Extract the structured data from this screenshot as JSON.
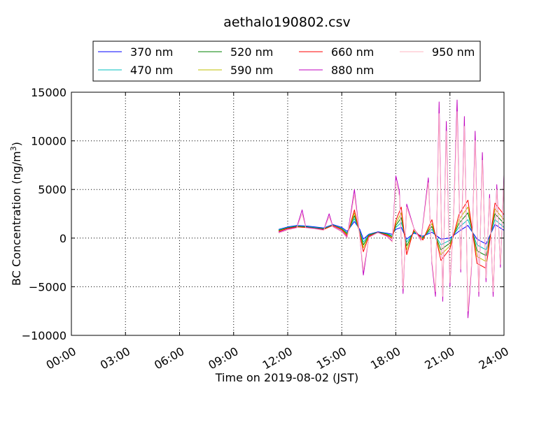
{
  "chart_data": {
    "type": "line",
    "title": "aethalo190802.csv",
    "xlabel": "Time on 2019-08-02 (JST)",
    "ylabel_main": "BC Concentration (ng/m",
    "ylabel_sup": "3",
    "ylabel_close": ")",
    "xlim": [
      0,
      24
    ],
    "ylim": [
      -10000,
      15000
    ],
    "x_ticks": [
      0,
      3,
      6,
      9,
      12,
      15,
      18,
      21,
      24
    ],
    "x_tick_labels": [
      "00:00",
      "03:00",
      "06:00",
      "09:00",
      "12:00",
      "15:00",
      "18:00",
      "21:00",
      "24:00"
    ],
    "y_ticks": [
      -10000,
      -5000,
      0,
      5000,
      10000,
      15000
    ],
    "y_tick_labels": [
      "−10000",
      "−5000",
      "0",
      "5000",
      "10000",
      "15000"
    ],
    "grid": true,
    "legend_position": "top",
    "series": [
      {
        "name": "370 nm",
        "color": "#0000ff",
        "points": [
          [
            11.5,
            900
          ],
          [
            12.0,
            1150
          ],
          [
            12.5,
            1300
          ],
          [
            13.0,
            1250
          ],
          [
            13.5,
            1150
          ],
          [
            14.0,
            1050
          ],
          [
            14.5,
            1400
          ],
          [
            15.0,
            1100
          ],
          [
            15.3,
            700
          ],
          [
            15.7,
            1700
          ],
          [
            16.0,
            900
          ],
          [
            16.2,
            -100
          ],
          [
            16.5,
            400
          ],
          [
            17.0,
            650
          ],
          [
            17.5,
            500
          ],
          [
            17.8,
            400
          ],
          [
            18.0,
            900
          ],
          [
            18.3,
            1100
          ],
          [
            18.6,
            -100
          ],
          [
            19.0,
            500
          ],
          [
            19.5,
            200
          ],
          [
            20.0,
            600
          ],
          [
            20.5,
            -100
          ],
          [
            21.0,
            0
          ],
          [
            21.5,
            700
          ],
          [
            22.0,
            1300
          ],
          [
            22.5,
            -100
          ],
          [
            23.0,
            -600
          ],
          [
            23.5,
            1400
          ],
          [
            24.0,
            800
          ]
        ]
      },
      {
        "name": "470 nm",
        "color": "#00bfbf",
        "points": [
          [
            11.5,
            850
          ],
          [
            12.0,
            1100
          ],
          [
            12.5,
            1250
          ],
          [
            13.0,
            1200
          ],
          [
            13.5,
            1100
          ],
          [
            14.0,
            1000
          ],
          [
            14.5,
            1350
          ],
          [
            15.0,
            1000
          ],
          [
            15.3,
            550
          ],
          [
            15.7,
            2000
          ],
          [
            16.0,
            700
          ],
          [
            16.2,
            -400
          ],
          [
            16.5,
            350
          ],
          [
            17.0,
            600
          ],
          [
            17.5,
            450
          ],
          [
            17.8,
            250
          ],
          [
            18.0,
            1100
          ],
          [
            18.3,
            1600
          ],
          [
            18.6,
            -400
          ],
          [
            19.0,
            600
          ],
          [
            19.5,
            100
          ],
          [
            20.0,
            900
          ],
          [
            20.5,
            -700
          ],
          [
            21.0,
            -200
          ],
          [
            21.5,
            1100
          ],
          [
            22.0,
            1900
          ],
          [
            22.5,
            -700
          ],
          [
            23.0,
            -1200
          ],
          [
            23.5,
            1900
          ],
          [
            24.0,
            1100
          ]
        ]
      },
      {
        "name": "520 nm",
        "color": "#008000",
        "points": [
          [
            11.5,
            800
          ],
          [
            12.0,
            1050
          ],
          [
            12.5,
            1200
          ],
          [
            13.0,
            1150
          ],
          [
            13.5,
            1050
          ],
          [
            14.0,
            950
          ],
          [
            14.5,
            1300
          ],
          [
            15.0,
            950
          ],
          [
            15.3,
            450
          ],
          [
            15.7,
            2300
          ],
          [
            16.0,
            600
          ],
          [
            16.2,
            -700
          ],
          [
            16.5,
            300
          ],
          [
            17.0,
            600
          ],
          [
            17.5,
            400
          ],
          [
            17.8,
            150
          ],
          [
            18.0,
            1300
          ],
          [
            18.3,
            2100
          ],
          [
            18.6,
            -800
          ],
          [
            19.0,
            700
          ],
          [
            19.5,
            0
          ],
          [
            20.0,
            1200
          ],
          [
            20.5,
            -1200
          ],
          [
            21.0,
            -500
          ],
          [
            21.5,
            1500
          ],
          [
            22.0,
            2600
          ],
          [
            22.5,
            -1300
          ],
          [
            23.0,
            -1800
          ],
          [
            23.5,
            2500
          ],
          [
            24.0,
            1500
          ]
        ]
      },
      {
        "name": "590 nm",
        "color": "#bfbf00",
        "points": [
          [
            11.5,
            750
          ],
          [
            12.0,
            1000
          ],
          [
            12.5,
            1150
          ],
          [
            13.0,
            1100
          ],
          [
            13.5,
            1000
          ],
          [
            14.0,
            900
          ],
          [
            14.5,
            1300
          ],
          [
            15.0,
            900
          ],
          [
            15.3,
            350
          ],
          [
            15.7,
            2600
          ],
          [
            16.0,
            500
          ],
          [
            16.2,
            -1000
          ],
          [
            16.5,
            250
          ],
          [
            17.0,
            550
          ],
          [
            17.5,
            350
          ],
          [
            17.8,
            50
          ],
          [
            18.0,
            1500
          ],
          [
            18.3,
            2600
          ],
          [
            18.6,
            -1200
          ],
          [
            19.0,
            800
          ],
          [
            19.5,
            -100
          ],
          [
            20.0,
            1500
          ],
          [
            20.5,
            -1700
          ],
          [
            21.0,
            -800
          ],
          [
            21.5,
            1900
          ],
          [
            22.0,
            3200
          ],
          [
            22.5,
            -1900
          ],
          [
            23.0,
            -2400
          ],
          [
            23.5,
            3000
          ],
          [
            24.0,
            1900
          ]
        ]
      },
      {
        "name": "660 nm",
        "color": "#ff0000",
        "points": [
          [
            11.5,
            700
          ],
          [
            12.0,
            1000
          ],
          [
            12.5,
            1150
          ],
          [
            13.0,
            1100
          ],
          [
            13.5,
            1000
          ],
          [
            14.0,
            900
          ],
          [
            14.5,
            1300
          ],
          [
            15.0,
            850
          ],
          [
            15.3,
            250
          ],
          [
            15.7,
            2900
          ],
          [
            16.0,
            400
          ],
          [
            16.2,
            -1400
          ],
          [
            16.5,
            200
          ],
          [
            17.0,
            550
          ],
          [
            17.5,
            300
          ],
          [
            17.8,
            -50
          ],
          [
            18.0,
            1800
          ],
          [
            18.3,
            3200
          ],
          [
            18.6,
            -1700
          ],
          [
            19.0,
            900
          ],
          [
            19.5,
            -200
          ],
          [
            20.0,
            1900
          ],
          [
            20.5,
            -2300
          ],
          [
            21.0,
            -1100
          ],
          [
            21.5,
            2400
          ],
          [
            22.0,
            3900
          ],
          [
            22.5,
            -2600
          ],
          [
            23.0,
            -3100
          ],
          [
            23.5,
            3600
          ],
          [
            24.0,
            2400
          ]
        ]
      },
      {
        "name": "880 nm",
        "color": "#bf00bf",
        "points": [
          [
            11.5,
            600
          ],
          [
            12.0,
            900
          ],
          [
            12.5,
            1100
          ],
          [
            12.8,
            2900
          ],
          [
            13.0,
            1100
          ],
          [
            13.5,
            1000
          ],
          [
            14.0,
            850
          ],
          [
            14.3,
            2500
          ],
          [
            14.5,
            1200
          ],
          [
            15.0,
            700
          ],
          [
            15.3,
            100
          ],
          [
            15.7,
            5000
          ],
          [
            16.0,
            200
          ],
          [
            16.2,
            -3800
          ],
          [
            16.5,
            100
          ],
          [
            17.0,
            600
          ],
          [
            17.5,
            200
          ],
          [
            17.8,
            -300
          ],
          [
            18.0,
            6400
          ],
          [
            18.2,
            4800
          ],
          [
            18.4,
            -5700
          ],
          [
            18.6,
            3500
          ],
          [
            19.0,
            1000
          ],
          [
            19.4,
            -200
          ],
          [
            19.8,
            6200
          ],
          [
            20.0,
            -2600
          ],
          [
            20.2,
            -6000
          ],
          [
            20.4,
            14000
          ],
          [
            20.6,
            -6500
          ],
          [
            20.8,
            12000
          ],
          [
            21.0,
            -5000
          ],
          [
            21.2,
            2000
          ],
          [
            21.4,
            14200
          ],
          [
            21.6,
            -3500
          ],
          [
            21.8,
            12500
          ],
          [
            22.0,
            -8200
          ],
          [
            22.2,
            -3000
          ],
          [
            22.4,
            11000
          ],
          [
            22.6,
            -6000
          ],
          [
            22.8,
            8800
          ],
          [
            23.0,
            -4500
          ],
          [
            23.2,
            4500
          ],
          [
            23.4,
            -6000
          ],
          [
            23.6,
            5500
          ],
          [
            23.8,
            -3000
          ],
          [
            24.0,
            6500
          ]
        ]
      },
      {
        "name": "950 nm",
        "color": "#ffb6c1",
        "points": [
          [
            11.5,
            500
          ],
          [
            12.0,
            850
          ],
          [
            12.5,
            1050
          ],
          [
            12.8,
            2500
          ],
          [
            13.0,
            1050
          ],
          [
            13.5,
            950
          ],
          [
            14.0,
            800
          ],
          [
            14.3,
            2200
          ],
          [
            14.5,
            1150
          ],
          [
            15.0,
            650
          ],
          [
            15.3,
            0
          ],
          [
            15.7,
            4500
          ],
          [
            16.0,
            100
          ],
          [
            16.2,
            -3300
          ],
          [
            16.5,
            50
          ],
          [
            17.0,
            550
          ],
          [
            17.5,
            150
          ],
          [
            17.8,
            -400
          ],
          [
            18.0,
            5800
          ],
          [
            18.2,
            4300
          ],
          [
            18.4,
            -5200
          ],
          [
            18.6,
            3200
          ],
          [
            19.0,
            950
          ],
          [
            19.4,
            -300
          ],
          [
            19.8,
            5700
          ],
          [
            20.0,
            -2300
          ],
          [
            20.2,
            -5500
          ],
          [
            20.4,
            12800
          ],
          [
            20.6,
            -6000
          ],
          [
            20.8,
            11000
          ],
          [
            21.0,
            -4600
          ],
          [
            21.2,
            1800
          ],
          [
            21.4,
            13000
          ],
          [
            21.6,
            -3200
          ],
          [
            21.8,
            11500
          ],
          [
            22.0,
            -7500
          ],
          [
            22.2,
            -2700
          ],
          [
            22.4,
            10000
          ],
          [
            22.6,
            -5500
          ],
          [
            22.8,
            8000
          ],
          [
            23.0,
            -4100
          ],
          [
            23.2,
            4100
          ],
          [
            23.4,
            -5500
          ],
          [
            23.6,
            5000
          ],
          [
            23.8,
            -2700
          ],
          [
            24.0,
            6000
          ]
        ]
      }
    ]
  }
}
